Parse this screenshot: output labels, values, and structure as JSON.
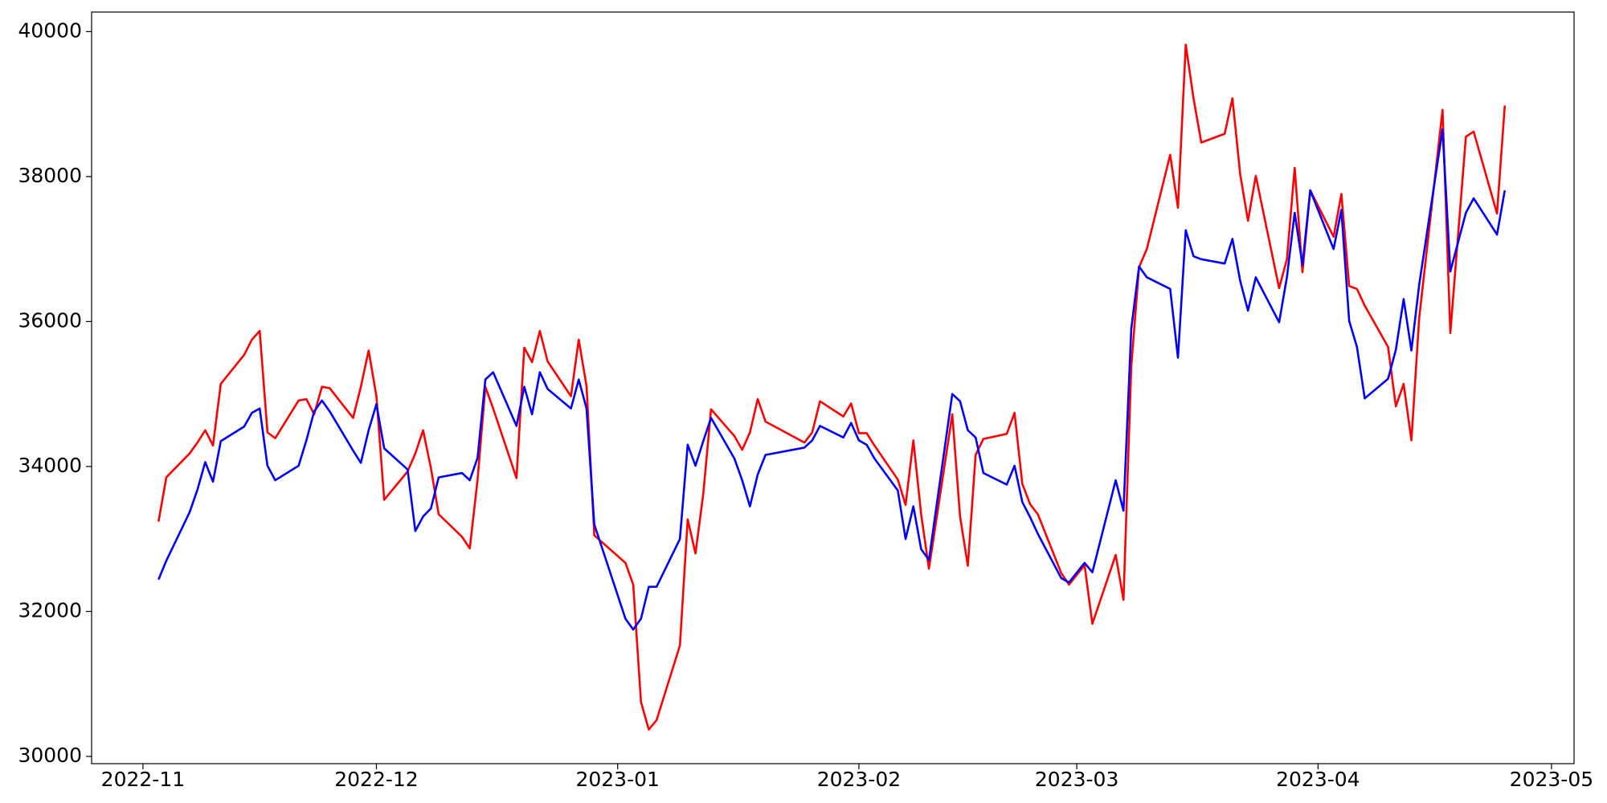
{
  "chart_data": {
    "type": "line",
    "x": [
      19299,
      19300,
      19303,
      19304,
      19305,
      19306,
      19307,
      19310,
      19311,
      19312,
      19313,
      19314,
      19317,
      19318,
      19319,
      19320,
      19321,
      19324,
      19325,
      19326,
      19327,
      19328,
      19331,
      19332,
      19333,
      19334,
      19335,
      19338,
      19339,
      19340,
      19341,
      19342,
      19345,
      19346,
      19347,
      19348,
      19349,
      19352,
      19353,
      19354,
      19355,
      19359,
      19360,
      19361,
      19362,
      19363,
      19366,
      19367,
      19368,
      19369,
      19370,
      19373,
      19374,
      19375,
      19376,
      19377,
      19382,
      19383,
      19384,
      19387,
      19388,
      19389,
      19390,
      19391,
      19394,
      19395,
      19396,
      19397,
      19398,
      19401,
      19402,
      19403,
      19404,
      19405,
      19408,
      19409,
      19410,
      19411,
      19412,
      19415,
      19416,
      19418,
      19419,
      19422,
      19423,
      19424,
      19425,
      19426,
      19429,
      19430,
      19431,
      19432,
      19433,
      19436,
      19437,
      19438,
      19439,
      19440,
      19443,
      19444,
      19445,
      19446,
      19447,
      19450,
      19451,
      19452,
      19453,
      19454,
      19457,
      19458,
      19459,
      19460,
      19461,
      19464,
      19465,
      19467,
      19468,
      19471,
      19472
    ],
    "series": [
      {
        "color": "#ff0000",
        "values": [
          33240,
          33850,
          34180,
          34330,
          34500,
          34290,
          35140,
          35540,
          35750,
          35870,
          34470,
          34390,
          34910,
          34930,
          34720,
          35100,
          35080,
          34670,
          35100,
          35600,
          34970,
          33540,
          33930,
          34180,
          34500,
          33980,
          33340,
          33030,
          32870,
          33820,
          35100,
          34800,
          33840,
          35640,
          35440,
          35870,
          35450,
          34970,
          35750,
          35110,
          33050,
          32670,
          32370,
          30750,
          30370,
          30500,
          31530,
          33270,
          32800,
          33620,
          34790,
          34420,
          34230,
          34470,
          34930,
          34620,
          34330,
          34470,
          34900,
          34690,
          34870,
          34460,
          34460,
          34290,
          33820,
          33470,
          34360,
          33340,
          32590,
          34720,
          33310,
          32630,
          34160,
          34380,
          34450,
          34740,
          33760,
          33480,
          33340,
          32530,
          32370,
          32640,
          31830,
          32780,
          32160,
          35380,
          36750,
          37000,
          38300,
          37570,
          39820,
          39080,
          38470,
          38590,
          39080,
          38030,
          37390,
          38010,
          36460,
          36860,
          38120,
          36680,
          37810,
          37170,
          37760,
          36490,
          36450,
          36220,
          35650,
          34830,
          35140,
          34360,
          36050,
          38920,
          35840,
          38550,
          38620,
          37490,
          38980
        ]
      },
      {
        "color": "#0000ff",
        "values": [
          32440,
          32700,
          33370,
          33680,
          34060,
          33790,
          34350,
          34550,
          34740,
          34800,
          34010,
          33810,
          34010,
          34360,
          34760,
          34910,
          34760,
          34220,
          34050,
          34500,
          34860,
          34250,
          33960,
          33110,
          33310,
          33420,
          33850,
          33910,
          33810,
          34120,
          35200,
          35300,
          34560,
          35100,
          34720,
          35300,
          35070,
          34800,
          35200,
          34800,
          33200,
          31900,
          31750,
          31900,
          32340,
          32340,
          33000,
          34300,
          34010,
          34350,
          34670,
          34110,
          33810,
          33450,
          33890,
          34160,
          34260,
          34360,
          34560,
          34400,
          34600,
          34360,
          34300,
          34110,
          33670,
          33000,
          33450,
          32860,
          32710,
          35000,
          34900,
          34500,
          34400,
          33910,
          33750,
          34010,
          33510,
          33300,
          33070,
          32460,
          32400,
          32670,
          32540,
          33810,
          33390,
          35900,
          36760,
          36610,
          36450,
          35500,
          37260,
          36900,
          36860,
          36800,
          37140,
          36560,
          36150,
          36610,
          35990,
          36610,
          37500,
          36780,
          37810,
          37000,
          37540,
          36010,
          35650,
          34940,
          35210,
          35610,
          36310,
          35600,
          36510,
          38650,
          36690,
          37500,
          37700,
          37200,
          37810
        ]
      }
    ],
    "xlim": [
      19290.4,
      19480.9
    ],
    "xticks": [
      {
        "value": 19297,
        "label": "2022-11"
      },
      {
        "value": 19327,
        "label": "2022-12"
      },
      {
        "value": 19358,
        "label": "2023-01"
      },
      {
        "value": 19389,
        "label": "2023-02"
      },
      {
        "value": 19417,
        "label": "2023-03"
      },
      {
        "value": 19448,
        "label": "2023-04"
      },
      {
        "value": 19478,
        "label": "2023-05"
      }
    ],
    "ylim": [
      29900,
      40270
    ],
    "yticks": [
      30000,
      32000,
      34000,
      36000,
      38000,
      40000
    ],
    "grid": false
  }
}
